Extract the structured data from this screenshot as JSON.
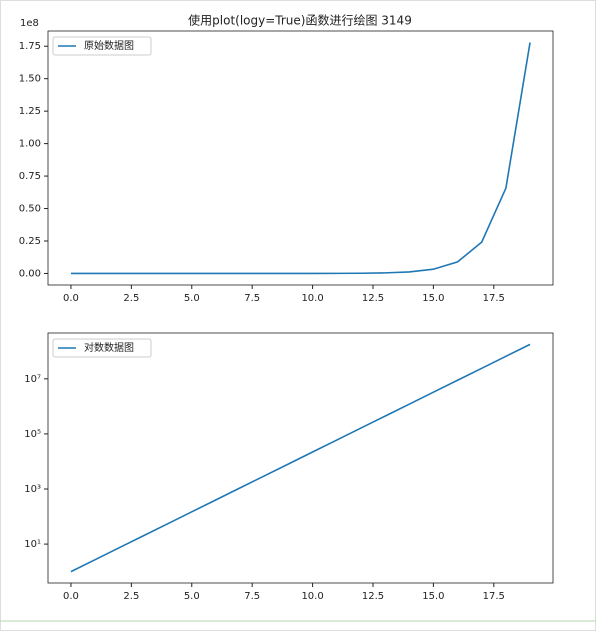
{
  "chart_data": [
    {
      "type": "line",
      "title": "使用plot(logy=True)函数进行绘图    3149",
      "x": [
        0,
        1,
        2,
        3,
        4,
        5,
        6,
        7,
        8,
        9,
        10,
        11,
        12,
        13,
        14,
        15,
        16,
        17,
        18,
        19
      ],
      "series": [
        {
          "name": "原始数据图",
          "color": "#1f77b4",
          "values": [
            1,
            2.718,
            7.389,
            20.09,
            54.6,
            148.4,
            403.4,
            1096.6,
            2981,
            8103,
            22026,
            59874,
            162755,
            442413,
            1202604,
            3269017,
            8886111,
            24154953,
            65659969,
            177827941
          ]
        }
      ],
      "xlim": [
        -0.95,
        19.95
      ],
      "xticks": [
        {
          "value": 0,
          "label": "0.0"
        },
        {
          "value": 2.5,
          "label": "2.5"
        },
        {
          "value": 5,
          "label": "5.0"
        },
        {
          "value": 7.5,
          "label": "7.5"
        },
        {
          "value": 10,
          "label": "10.0"
        },
        {
          "value": 12.5,
          "label": "12.5"
        },
        {
          "value": 15,
          "label": "15.0"
        },
        {
          "value": 17.5,
          "label": "17.5"
        }
      ],
      "ylim": [
        -8891396,
        186719338
      ],
      "yticks": [
        {
          "value": 0,
          "label": "0.00"
        },
        {
          "value": 25000000,
          "label": "0.25"
        },
        {
          "value": 50000000,
          "label": "0.50"
        },
        {
          "value": 75000000,
          "label": "0.75"
        },
        {
          "value": 100000000,
          "label": "1.00"
        },
        {
          "value": 125000000,
          "label": "1.25"
        },
        {
          "value": 150000000,
          "label": "1.50"
        },
        {
          "value": 175000000,
          "label": "1.75"
        }
      ],
      "y_offset_label": "1e8",
      "logy": false,
      "legend": "upper left"
    },
    {
      "type": "line",
      "x": [
        0,
        1,
        2,
        3,
        4,
        5,
        6,
        7,
        8,
        9,
        10,
        11,
        12,
        13,
        14,
        15,
        16,
        17,
        18,
        19
      ],
      "series": [
        {
          "name": "对数数据图",
          "color": "#1f77b4",
          "values": [
            1,
            2.718,
            7.389,
            20.09,
            54.6,
            148.4,
            403.4,
            1096.6,
            2981,
            8103,
            22026,
            59874,
            162755,
            442413,
            1202604,
            3269017,
            8886111,
            24154953,
            65659969,
            177827941
          ]
        }
      ],
      "xlim": [
        -0.95,
        19.95
      ],
      "xticks": [
        {
          "value": 0,
          "label": "0.0"
        },
        {
          "value": 2.5,
          "label": "2.5"
        },
        {
          "value": 5,
          "label": "5.0"
        },
        {
          "value": 7.5,
          "label": "7.5"
        },
        {
          "value": 10,
          "label": "10.0"
        },
        {
          "value": 12.5,
          "label": "12.5"
        },
        {
          "value": 15,
          "label": "15.0"
        },
        {
          "value": 17.5,
          "label": "17.5"
        }
      ],
      "ylim": [
        0.387,
        461000000
      ],
      "yticks": [
        {
          "value": 10,
          "label": "10¹"
        },
        {
          "value": 1000,
          "label": "10³"
        },
        {
          "value": 100000,
          "label": "10⁵"
        },
        {
          "value": 10000000,
          "label": "10⁷"
        }
      ],
      "logy": true,
      "legend": "upper left"
    }
  ]
}
